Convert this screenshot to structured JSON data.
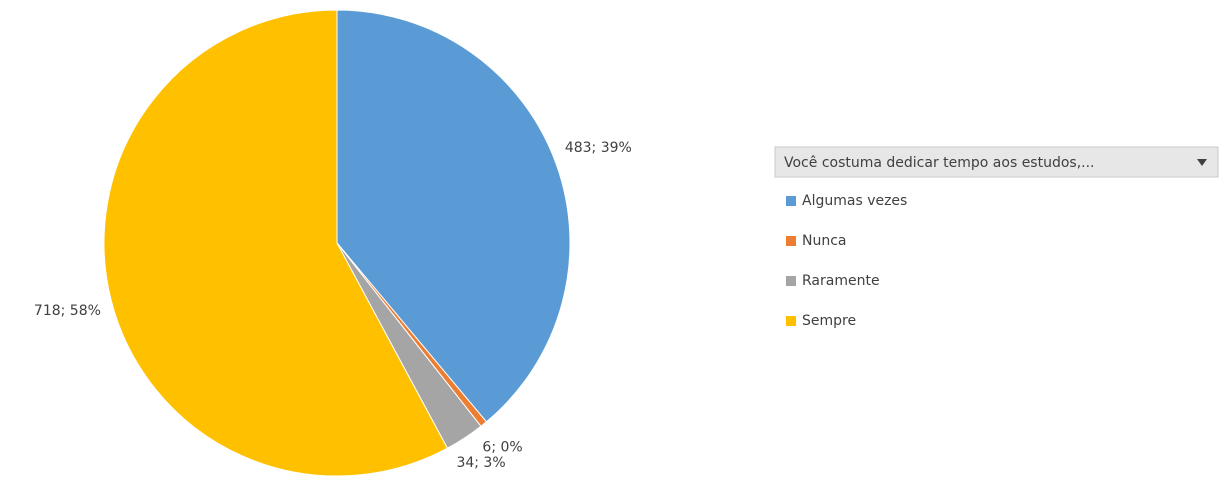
{
  "chart_data": {
    "type": "pie",
    "legend_title": "Você costuma dedicar tempo aos estudos,...",
    "categories": [
      "Algumas vezes",
      "Nunca",
      "Raramente",
      "Sempre"
    ],
    "values": [
      483,
      6,
      34,
      718
    ],
    "value_labels": [
      "483; 39%",
      "6; 0%",
      "34; 3%",
      "718; 58%"
    ],
    "colors": [
      "#5b9bd5",
      "#ed7d31",
      "#a5a5a5",
      "#ffc000"
    ],
    "legend": "right"
  }
}
